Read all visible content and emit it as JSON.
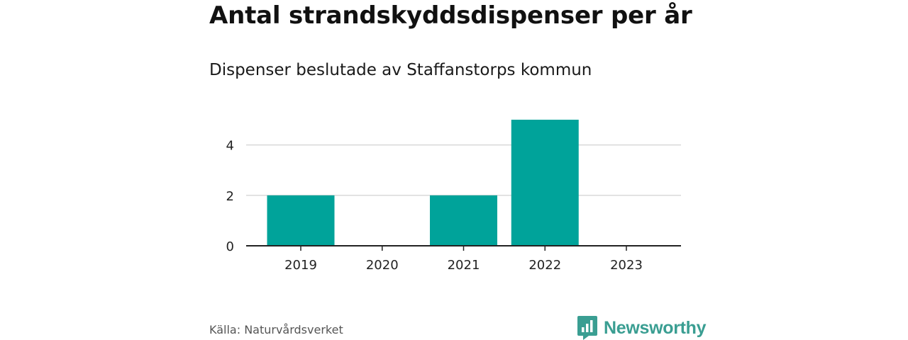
{
  "title": "Antal strandskyddsdispenser per år",
  "subtitle": "Dispenser beslutade av Staffanstorps kommun",
  "source": "Källa: Naturvårdsverket",
  "brand": {
    "name": "Newsworthy",
    "logo_icon": "newsworthy-logo-icon"
  },
  "colors": {
    "bar": "#00a39a",
    "grid": "#d9d9d9",
    "axis": "#222222",
    "brand": "#3a9e92"
  },
  "chart_data": {
    "type": "bar",
    "categories": [
      "2019",
      "2020",
      "2021",
      "2022",
      "2023"
    ],
    "values": [
      2,
      0,
      2,
      5,
      0
    ],
    "yticks": [
      0,
      2,
      4
    ],
    "ylim": [
      0,
      5
    ],
    "xlabel": "",
    "ylabel": "",
    "grid": true,
    "legend": "none"
  }
}
